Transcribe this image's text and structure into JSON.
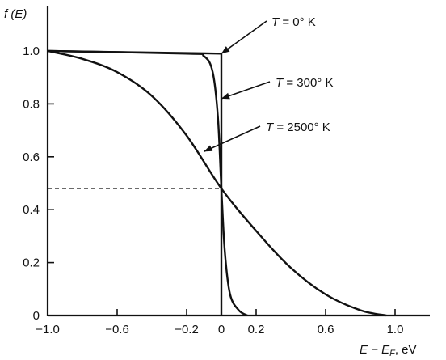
{
  "chart_data": {
    "type": "line",
    "ylabel": "f (E)",
    "xlabel": "E − E",
    "xlabel_sub": "F",
    "xlabel_unit": ", eV",
    "xlim": [
      -1.0,
      1.0
    ],
    "ylim": [
      0,
      1.0
    ],
    "x_ticks": [
      {
        "value": -1.0,
        "label": "−1.0"
      },
      {
        "value": -0.6,
        "label": "−0.6"
      },
      {
        "value": -0.2,
        "label": "−0.2"
      },
      {
        "value": 0.0,
        "label": "0"
      },
      {
        "value": 0.2,
        "label": "0.2"
      },
      {
        "value": 0.6,
        "label": "0.6"
      },
      {
        "value": 1.0,
        "label": "1.0"
      }
    ],
    "y_ticks": [
      {
        "value": 0.0,
        "label": "0"
      },
      {
        "value": 0.2,
        "label": "0.2"
      },
      {
        "value": 0.4,
        "label": "0.4"
      },
      {
        "value": 0.6,
        "label": "0.6"
      },
      {
        "value": 0.8,
        "label": "0.8"
      },
      {
        "value": 1.0,
        "label": "1.0"
      }
    ],
    "reference_line": {
      "y": 0.48,
      "x_from": -1.0,
      "x_to": 0.0,
      "style": "dashed"
    },
    "series": [
      {
        "name": "T = 0° K",
        "points": [
          [
            -1.0,
            1.0
          ],
          [
            0.0,
            0.99
          ],
          [
            0.0,
            0.0
          ]
        ]
      },
      {
        "name": "T = 300° K",
        "points": [
          [
            -1.0,
            1.0
          ],
          [
            -0.2,
            0.99
          ],
          [
            -0.1,
            0.98
          ],
          [
            -0.05,
            0.92
          ],
          [
            -0.02,
            0.75
          ],
          [
            0.0,
            0.48
          ],
          [
            0.02,
            0.24
          ],
          [
            0.05,
            0.08
          ],
          [
            0.1,
            0.02
          ],
          [
            0.15,
            0.0
          ]
        ]
      },
      {
        "name": "T = 2500° K",
        "points": [
          [
            -1.0,
            1.0
          ],
          [
            -0.8,
            0.97
          ],
          [
            -0.6,
            0.92
          ],
          [
            -0.4,
            0.83
          ],
          [
            -0.2,
            0.68
          ],
          [
            0.0,
            0.48
          ],
          [
            0.2,
            0.32
          ],
          [
            0.4,
            0.18
          ],
          [
            0.6,
            0.08
          ],
          [
            0.8,
            0.02
          ],
          [
            0.95,
            0.0
          ]
        ]
      }
    ],
    "annotations": [
      {
        "prefix": "T",
        "text": " = 0° K",
        "target": [
          0.0,
          0.99
        ]
      },
      {
        "prefix": "T",
        "text": " = 300° K",
        "target": [
          0.0,
          0.82
        ]
      },
      {
        "prefix": "T",
        "text": " = 2500° K",
        "target": [
          -0.1,
          0.62
        ]
      }
    ],
    "grid": false,
    "legend": "none"
  }
}
